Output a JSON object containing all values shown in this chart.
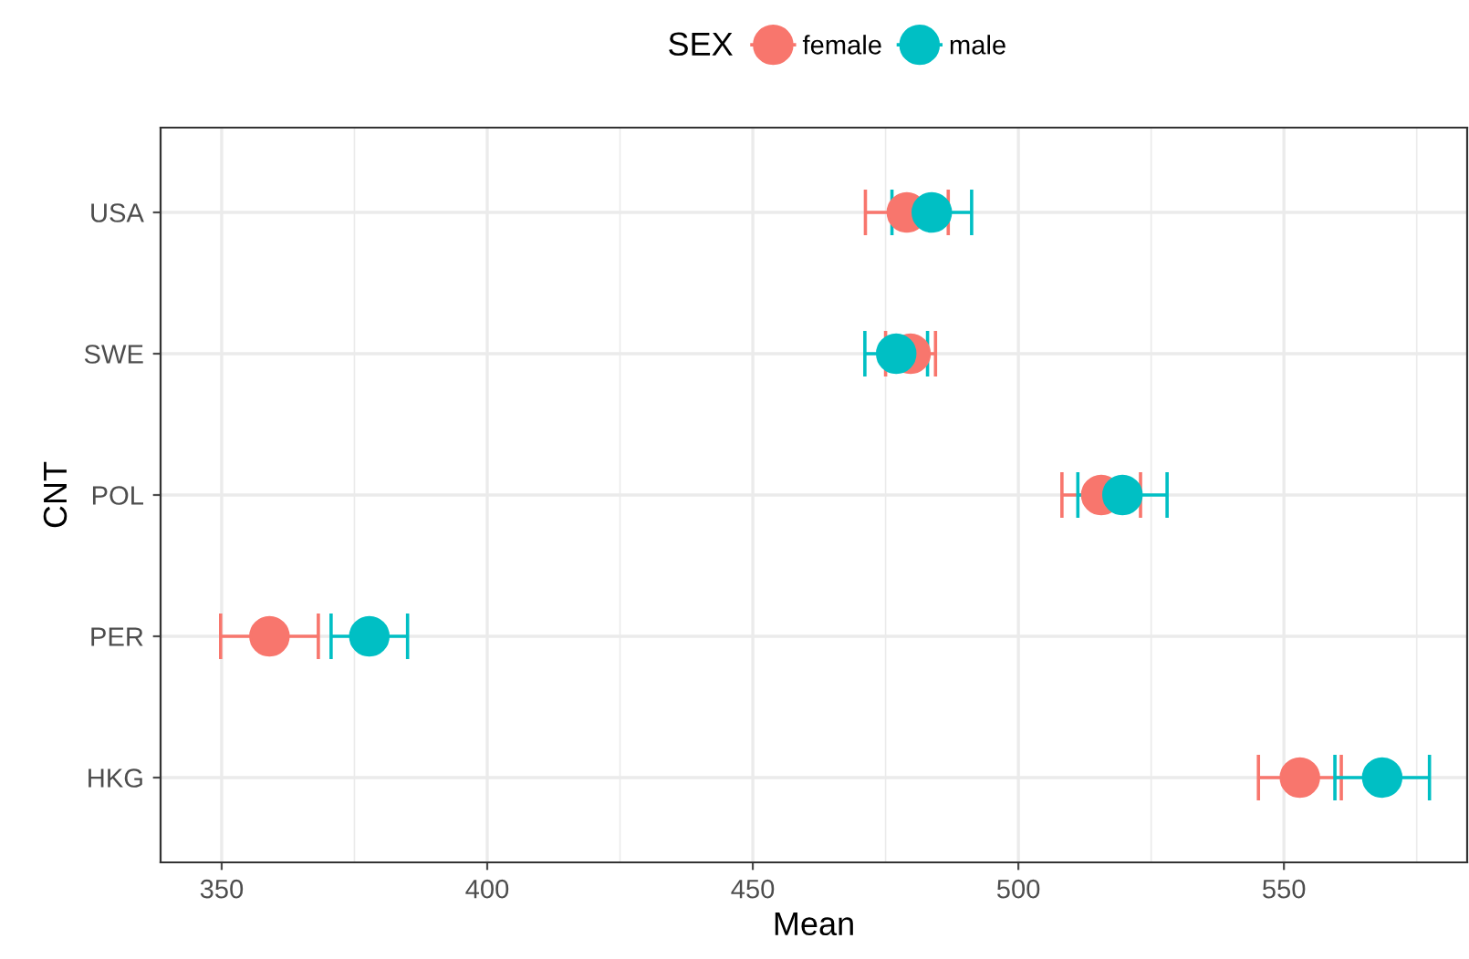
{
  "chart_data": {
    "type": "scatter",
    "orientation": "horizontal",
    "xlabel": "Mean",
    "ylabel": "CNT",
    "legend_title": "SEX",
    "categories": [
      "USA",
      "SWE",
      "POL",
      "PER",
      "HKG"
    ],
    "series": [
      {
        "name": "female",
        "color": "#f8766d",
        "values": [
          479.0,
          479.7,
          515.6,
          359.0,
          553.0
        ],
        "errors": [
          7.8,
          4.7,
          7.4,
          9.2,
          7.8
        ]
      },
      {
        "name": "male",
        "color": "#00bfc4",
        "values": [
          483.7,
          477.0,
          519.6,
          377.8,
          568.5
        ],
        "errors": [
          7.5,
          5.9,
          8.4,
          7.2,
          8.9
        ]
      }
    ],
    "xlim": [
      338.5,
      584.5
    ],
    "xticks": [
      350,
      400,
      450,
      500,
      550
    ],
    "grid": true,
    "legend": "top",
    "marker": "circle"
  }
}
